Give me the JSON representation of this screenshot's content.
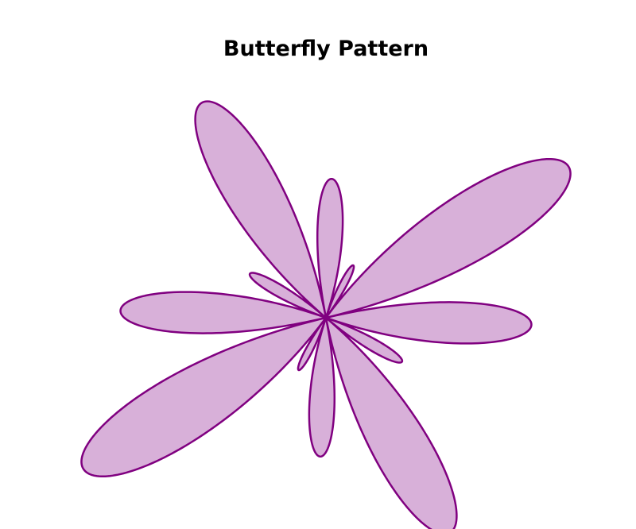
{
  "chart_data": {
    "type": "area",
    "title": "Butterfly Pattern",
    "xlabel": "",
    "ylabel": "",
    "axes_visible": false,
    "grid": false,
    "style": {
      "line_color": "#800080",
      "fill_color": "#d8b0d9"
    },
    "series": [
      {
        "curve": "polar rose r = 1.5*cos(6θ) + sin(2θ) - 0.3*cos(4θ)",
        "theta_range": [
          0,
          6.2832
        ],
        "x": [
          0.0,
          0.35,
          0.81,
          0.96,
          0.81,
          0.0,
          -0.4,
          -0.97,
          -0.85,
          -0.62,
          -0.29,
          0.0,
          0.29,
          0.62,
          0.85,
          0.97,
          0.4,
          0.0,
          -0.81,
          -0.96,
          -0.81,
          -0.35,
          0.0
        ],
        "y": [
          0.0,
          0.07,
          -0.36,
          -0.94,
          -1.37,
          0.0,
          0.06,
          1.36,
          1.99,
          1.75,
          0.8,
          0.33,
          0.8,
          1.75,
          1.99,
          1.36,
          0.06,
          0.0,
          -1.37,
          -0.94,
          -0.36,
          0.07,
          0.0
        ]
      }
    ]
  }
}
